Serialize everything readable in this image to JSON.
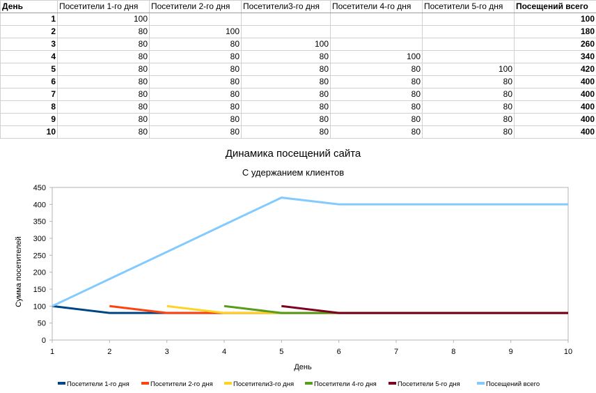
{
  "table": {
    "headers": [
      "День",
      "Посетители 1-го дня",
      "Посетители 2-го дня",
      "Посетители3-го дня",
      "Посетители 4-го дня",
      "Посетители 5-го дня",
      "Посещений всего"
    ],
    "rows": [
      [
        "1",
        "100",
        "",
        "",
        "",
        "",
        "100"
      ],
      [
        "2",
        "80",
        "100",
        "",
        "",
        "",
        "180"
      ],
      [
        "3",
        "80",
        "80",
        "100",
        "",
        "",
        "260"
      ],
      [
        "4",
        "80",
        "80",
        "80",
        "100",
        "",
        "340"
      ],
      [
        "5",
        "80",
        "80",
        "80",
        "80",
        "100",
        "420"
      ],
      [
        "6",
        "80",
        "80",
        "80",
        "80",
        "80",
        "400"
      ],
      [
        "7",
        "80",
        "80",
        "80",
        "80",
        "80",
        "400"
      ],
      [
        "8",
        "80",
        "80",
        "80",
        "80",
        "80",
        "400"
      ],
      [
        "9",
        "80",
        "80",
        "80",
        "80",
        "80",
        "400"
      ],
      [
        "10",
        "80",
        "80",
        "80",
        "80",
        "80",
        "400"
      ]
    ]
  },
  "chart_data": {
    "type": "line",
    "title": "Динамика посещений сайта",
    "subtitle": "С удержанием клиентов",
    "xlabel": "День",
    "ylabel": "Сумма посетителей",
    "xlim": [
      1,
      10
    ],
    "ylim": [
      0,
      450
    ],
    "x_ticks": [
      1,
      2,
      3,
      4,
      5,
      6,
      7,
      8,
      9,
      10
    ],
    "y_ticks": [
      0,
      50,
      100,
      150,
      200,
      250,
      300,
      350,
      400,
      450
    ],
    "grid": false,
    "legend_position": "bottom",
    "series": [
      {
        "name": "Посетители 1-го дня",
        "color": "#004586",
        "x": [
          1,
          2,
          3,
          4,
          5,
          6,
          7,
          8,
          9,
          10
        ],
        "values": [
          100,
          80,
          80,
          80,
          80,
          80,
          80,
          80,
          80,
          80
        ]
      },
      {
        "name": "Посетители 2-го дня",
        "color": "#ff420e",
        "x": [
          2,
          3,
          4,
          5,
          6,
          7,
          8,
          9,
          10
        ],
        "values": [
          100,
          80,
          80,
          80,
          80,
          80,
          80,
          80,
          80
        ]
      },
      {
        "name": "Посетители3-го дня",
        "color": "#ffd320",
        "x": [
          3,
          4,
          5,
          6,
          7,
          8,
          9,
          10
        ],
        "values": [
          100,
          80,
          80,
          80,
          80,
          80,
          80,
          80
        ]
      },
      {
        "name": "Посетители 4-го дня",
        "color": "#579d1c",
        "x": [
          4,
          5,
          6,
          7,
          8,
          9,
          10
        ],
        "values": [
          100,
          80,
          80,
          80,
          80,
          80,
          80
        ]
      },
      {
        "name": "Посетители 5-го дня",
        "color": "#7e0021",
        "x": [
          5,
          6,
          7,
          8,
          9,
          10
        ],
        "values": [
          100,
          80,
          80,
          80,
          80,
          80
        ]
      },
      {
        "name": "Посещений всего",
        "color": "#83caff",
        "x": [
          1,
          2,
          3,
          4,
          5,
          6,
          7,
          8,
          9,
          10
        ],
        "values": [
          100,
          180,
          260,
          340,
          420,
          400,
          400,
          400,
          400,
          400
        ]
      }
    ]
  }
}
